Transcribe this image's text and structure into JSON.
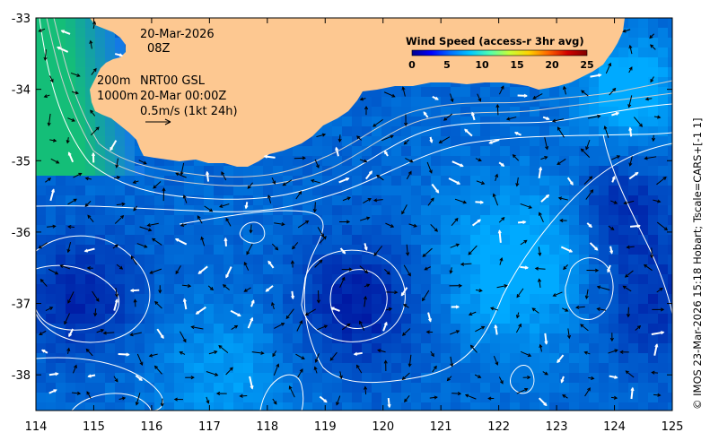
{
  "map": {
    "x_ticks": [
      "114",
      "115",
      "116",
      "117",
      "118",
      "119",
      "120",
      "121",
      "122",
      "123",
      "124",
      "125"
    ],
    "y_ticks": [
      "-33",
      "-34",
      "-35",
      "-36",
      "-37",
      "-38"
    ],
    "lon_range": [
      114,
      125
    ],
    "lat_range": [
      -38.5,
      -33
    ]
  },
  "annotation": {
    "date": "20-Mar-2026",
    "time": "08Z",
    "contour_200": "200m",
    "contour_1000": "1000m",
    "product": "NRT00 GSL",
    "product_time": "20-Mar 00:00Z",
    "scale_line1": "0.5m/s (1kt 24h)"
  },
  "colorbar": {
    "title": "Wind Speed (access-r 3hr avg)",
    "ticks": [
      "0",
      "5",
      "10",
      "15",
      "20",
      "25"
    ],
    "colors": [
      "#00008f",
      "#0000ff",
      "#0070ff",
      "#00c8ff",
      "#50ffaf",
      "#c8ff37",
      "#ffd200",
      "#ff6400",
      "#d20000",
      "#800000"
    ]
  },
  "credit": "© IMOS 23-Mar-2026 15:18 Hobart; Tscale=CARS+[-1 1]",
  "colors": {
    "land": "#fdc891",
    "contour": "#ffffff",
    "coast_contour": "#bdbdbd"
  }
}
